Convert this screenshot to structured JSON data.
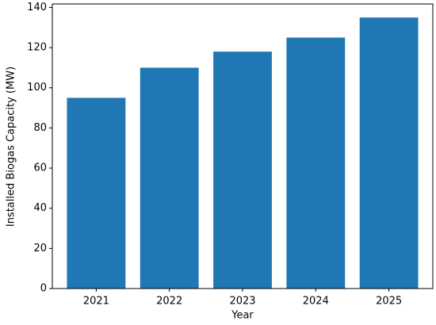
{
  "chart_data": {
    "type": "bar",
    "xlabel": "Year",
    "ylabel": "Installed Biogas Capacity (MW)",
    "categories": [
      "2021",
      "2022",
      "2023",
      "2024",
      "2025"
    ],
    "values": [
      95,
      110,
      118,
      125,
      135
    ],
    "color": "#1f77b4",
    "ylim": [
      0,
      141.75
    ],
    "yticks": [
      0,
      20,
      40,
      60,
      80,
      100,
      120,
      140
    ],
    "grid": false
  }
}
